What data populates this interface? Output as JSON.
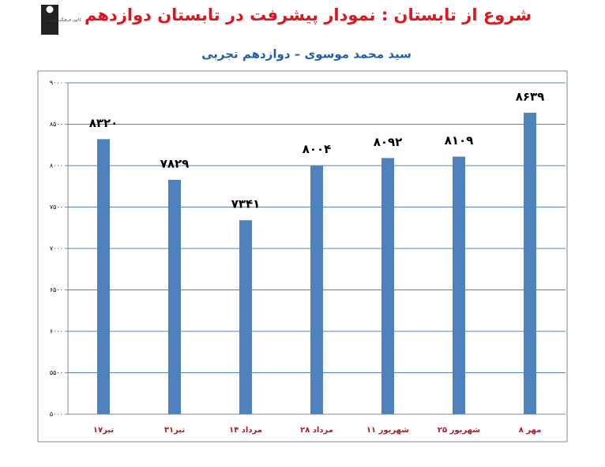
{
  "chart_data": {
    "type": "bar",
    "title": "شروع از تابستان : نمودار پیشرفت در تابستان دوازدهم",
    "subtitle": "سید محمد موسوی – دوازدهم تجربی",
    "logo_text": "کانون فرهنگی آموزش",
    "categories": [
      "۱۷تیر",
      "۳۱تیر",
      "۱۴ مرداد",
      "۲۸ مرداد",
      "۱۱ شهریور",
      "۲۵ شهریور",
      "۸ مهر"
    ],
    "values": [
      8320,
      7829,
      7341,
      8004,
      8092,
      8109,
      8639
    ],
    "value_labels": [
      "۸۳۲۰",
      "۷۸۲۹",
      "۷۳۴۱",
      "۸۰۰۴",
      "۸۰۹۲",
      "۸۱۰۹",
      "۸۶۳۹"
    ],
    "color": "#4f81bd",
    "ylim": [
      5000,
      9000
    ],
    "yticks": [
      {
        "value": 5000,
        "label": "۵۰۰۰"
      },
      {
        "value": 5500,
        "label": "۵۵۰۰"
      },
      {
        "value": 6000,
        "label": "۶۰۰۰"
      },
      {
        "value": 6500,
        "label": "۶۵۰۰"
      },
      {
        "value": 7000,
        "label": "۷۰۰۰"
      },
      {
        "value": 7500,
        "label": "۷۵۰۰"
      },
      {
        "value": 8000,
        "label": "۸۰۰۰"
      },
      {
        "value": 8500,
        "label": "۸۵۰۰"
      },
      {
        "value": 9000,
        "label": "۹۰۰۰"
      }
    ],
    "grid": true
  }
}
